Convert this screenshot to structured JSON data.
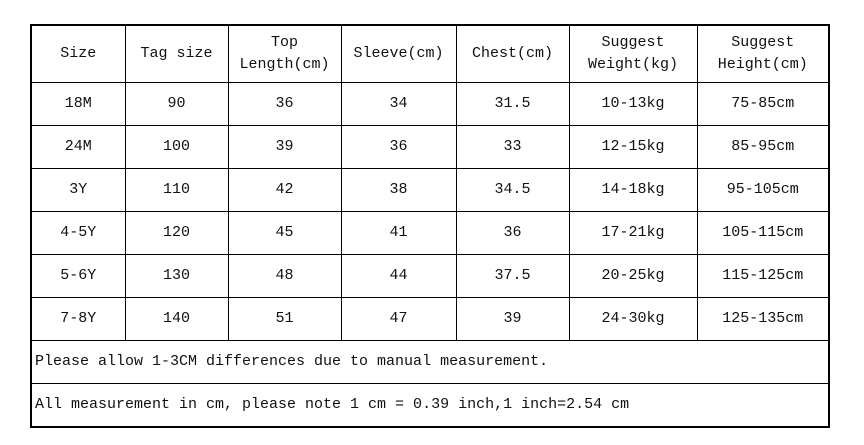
{
  "table": {
    "header": [
      [
        "Size"
      ],
      [
        "Tag size"
      ],
      [
        "Top",
        "Length(cm)"
      ],
      [
        "Sleeve(cm)"
      ],
      [
        "Chest(cm)"
      ],
      [
        "Suggest",
        "Weight(kg)"
      ],
      [
        "Suggest",
        "Height(cm)"
      ]
    ],
    "rows": [
      [
        "18M",
        "90",
        "36",
        "34",
        "31.5",
        "10-13kg",
        "75-85cm"
      ],
      [
        "24M",
        "100",
        "39",
        "36",
        "33",
        "12-15kg",
        "85-95cm"
      ],
      [
        "3Y",
        "110",
        "42",
        "38",
        "34.5",
        "14-18kg",
        "95-105cm"
      ],
      [
        "4-5Y",
        "120",
        "45",
        "41",
        "36",
        "17-21kg",
        "105-115cm"
      ],
      [
        "5-6Y",
        "130",
        "48",
        "44",
        "37.5",
        "20-25kg",
        "115-125cm"
      ],
      [
        "7-8Y",
        "140",
        "51",
        "47",
        "39",
        "24-30kg",
        "125-135cm"
      ]
    ],
    "notes": [
      "Please allow 1-3CM differences due to manual measurement.",
      "All measurement in cm, please note 1 cm = 0.39 inch,1 inch=2.54 cm"
    ]
  }
}
